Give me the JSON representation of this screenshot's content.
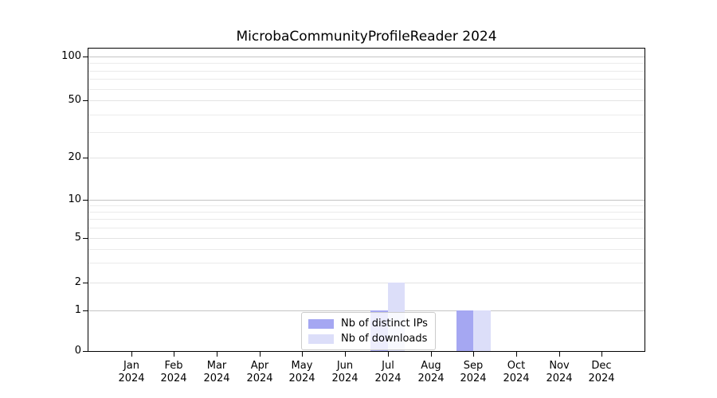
{
  "figure_title": "MicrobaCommunityProfileReader 2024",
  "chart_data": {
    "type": "bar",
    "title": "MicrobaCommunityProfileReader 2024",
    "categories": [
      "Jan 2024",
      "Feb 2024",
      "Mar 2024",
      "Apr 2024",
      "May 2024",
      "Jun 2024",
      "Jul 2024",
      "Aug 2024",
      "Sep 2024",
      "Oct 2024",
      "Nov 2024",
      "Dec 2024"
    ],
    "category_line1": [
      "Jan",
      "Feb",
      "Mar",
      "Apr",
      "May",
      "Jun",
      "Jul",
      "Aug",
      "Sep",
      "Oct",
      "Nov",
      "Dec"
    ],
    "category_line2": "2024",
    "series": [
      {
        "name": "Nb of distinct IPs",
        "color": "#a5a7f2",
        "values": [
          0,
          0,
          0,
          0,
          0,
          0,
          1,
          0,
          1,
          0,
          0,
          0
        ]
      },
      {
        "name": "Nb of downloads",
        "color": "#dcdef9",
        "values": [
          0,
          0,
          0,
          0,
          0,
          0,
          2,
          0,
          1,
          0,
          0,
          0
        ]
      }
    ],
    "yscale": "symlog",
    "ytick_labels": [
      "0",
      "1",
      "2",
      "5",
      "10",
      "20",
      "50",
      "100"
    ],
    "ytick_values": [
      0,
      1,
      2,
      5,
      10,
      20,
      50,
      100
    ],
    "minor_grid_values": [
      3,
      4,
      6,
      7,
      8,
      9,
      30,
      40,
      60,
      70,
      80,
      90
    ],
    "major_grid_values": [
      1,
      10,
      100
    ],
    "ylim": [
      0,
      115
    ],
    "xlim_units": [
      -1,
      12
    ],
    "grid": "both",
    "legend_position": "lower center",
    "colors": {
      "axis": "#000000",
      "grid_major": "#c4c4c4",
      "grid_minor": "#ebebeb",
      "background": "#ffffff"
    }
  }
}
